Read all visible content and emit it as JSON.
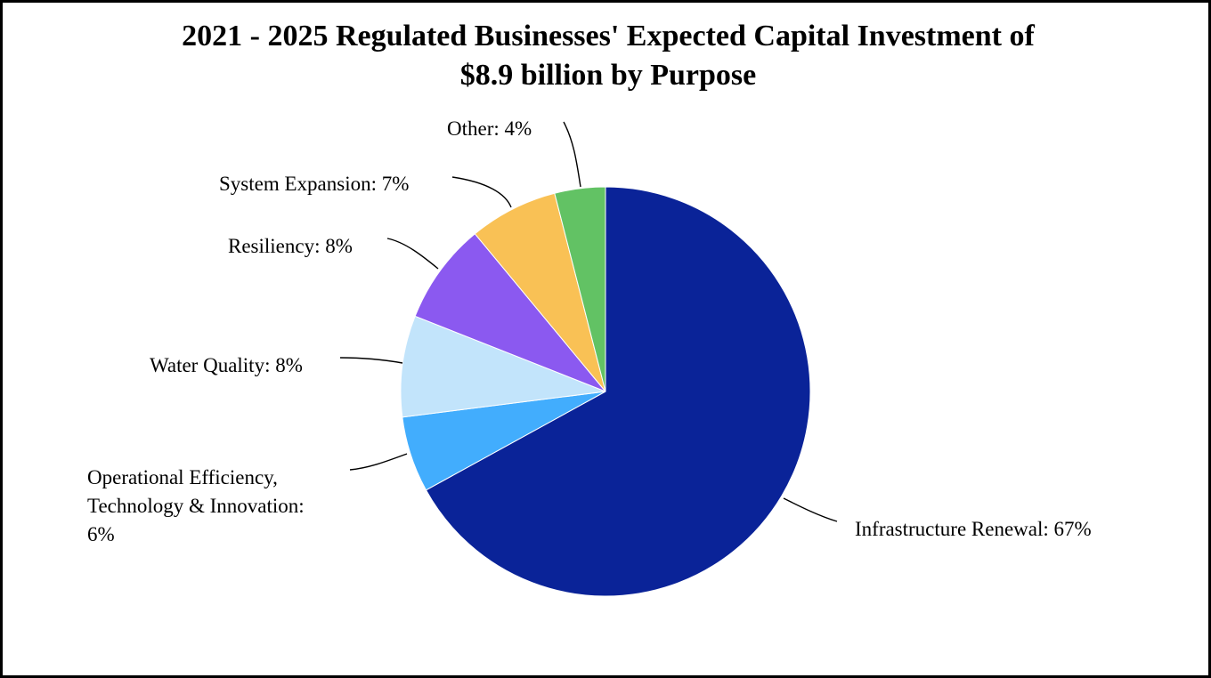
{
  "chart_data": {
    "type": "pie",
    "title_line1": "2021 - 2025 Regulated Businesses' Expected Capital Investment of",
    "title_line2": "$8.9 billion by Purpose",
    "slices": [
      {
        "label": "Infrastructure Renewal: 67%",
        "name": "Infrastructure Renewal",
        "value": 67,
        "color": "#0a2398"
      },
      {
        "label_lines": [
          "Operational Efficiency,",
          "Technology & Innovation:",
          "6%"
        ],
        "name": "Operational Efficiency, Technology & Innovation",
        "value": 6,
        "color": "#42adfd"
      },
      {
        "label": "Water Quality: 8%",
        "name": "Water Quality",
        "value": 8,
        "color": "#c2e4fb"
      },
      {
        "label": "Resiliency: 8%",
        "name": "Resiliency",
        "value": 8,
        "color": "#8b59f0"
      },
      {
        "label": "System Expansion: 7%",
        "name": "System Expansion",
        "value": 7,
        "color": "#f9c155"
      },
      {
        "label": "Other: 4%",
        "name": "Other",
        "value": 4,
        "color": "#62c264"
      }
    ]
  }
}
